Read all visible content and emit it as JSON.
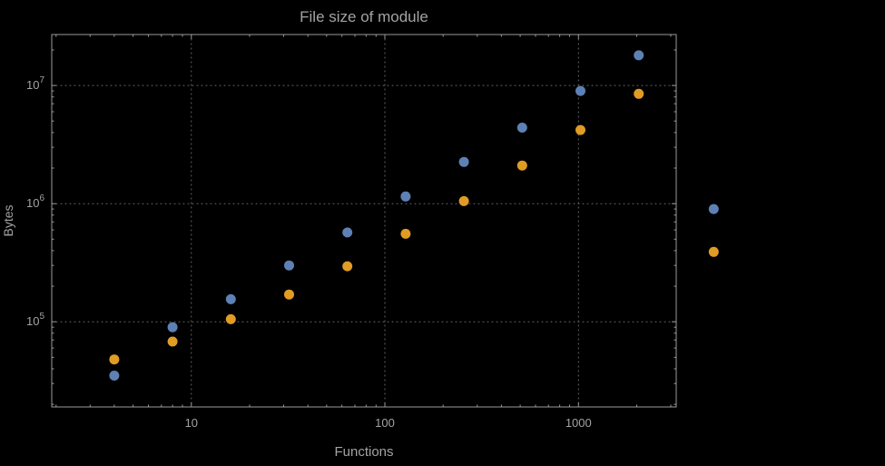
{
  "page": {
    "background_color": "#000000"
  },
  "chart": {
    "title": "File size of module",
    "xlabel": "Functions",
    "ylabel": "Bytes",
    "label_color": "#a3a3a3",
    "frame_color": "#9a9a9a",
    "grid_color": "#6b6b6b"
  },
  "chart_data": {
    "type": "scatter",
    "x_scale": "log",
    "y_scale": "log",
    "title": "File size of module",
    "xlabel": "Functions",
    "ylabel": "Bytes",
    "grid": "dotted-at-decades",
    "legend": "none",
    "x": [
      4,
      8,
      16,
      32,
      64,
      128,
      256,
      512,
      1024,
      2048,
      5000
    ],
    "series": [
      {
        "name": "series-blue",
        "color": "#5e81b5",
        "values": [
          35000,
          90000,
          155000,
          300000,
          570000,
          1150000,
          2250000,
          4400000,
          9000000,
          18000000,
          900000
        ]
      },
      {
        "name": "series-orange",
        "color": "#e09c24",
        "values": [
          48000,
          68000,
          105000,
          170000,
          295000,
          555000,
          1050000,
          2100000,
          4200000,
          8500000,
          390000
        ]
      }
    ],
    "x_ticks": [
      10,
      100,
      1000
    ],
    "x_tick_labels": [
      "10",
      "100",
      "1000"
    ],
    "y_ticks": [
      100000,
      1000000,
      10000000
    ],
    "y_tick_labels": [
      "10^5",
      "10^6",
      "10^7"
    ],
    "xlim": [
      1.9,
      3200
    ],
    "ylim": [
      19000,
      27000000
    ]
  }
}
